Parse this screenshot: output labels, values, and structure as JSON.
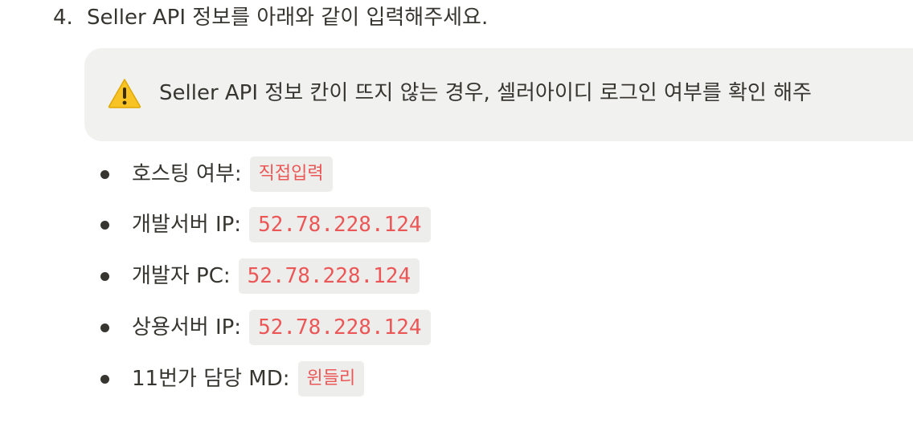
{
  "step": {
    "number": "4.",
    "text": "Seller API 정보를 아래와 같이 입력해주세요."
  },
  "callout": {
    "icon": "warning-icon",
    "text": "Seller API 정보 칸이 뜨지 않는 경우, 셀러아이디 로그인 여부를 확인 해주"
  },
  "items": [
    {
      "label": "호스팅 여부:",
      "value": "직접입력"
    },
    {
      "label": "개발서버 IP:",
      "value": "52.78.228.124"
    },
    {
      "label": "개발자 PC:",
      "value": "52.78.228.124"
    },
    {
      "label": "상용서버 IP:",
      "value": "52.78.228.124"
    },
    {
      "label": "11번가 담당 MD:",
      "value": "윈들리"
    }
  ],
  "colors": {
    "text": "#37352f",
    "code_text": "#eb5757",
    "code_bg": "#ededeb",
    "callout_bg": "#f1f1ef",
    "warning_fill": "#f7c325"
  }
}
